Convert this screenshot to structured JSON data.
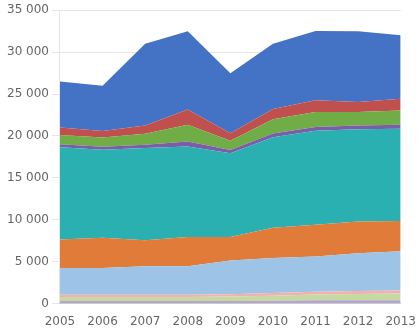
{
  "chart_data": {
    "type": "area",
    "stacked": true,
    "grid": true,
    "x": [
      2005,
      2006,
      2007,
      2008,
      2009,
      2010,
      2011,
      2012,
      2013
    ],
    "xlim": [
      2005,
      2013
    ],
    "xticks": [
      2005,
      2006,
      2007,
      2008,
      2009,
      2010,
      2011,
      2012,
      2013
    ],
    "ylim": [
      0,
      35000
    ],
    "yticks": [
      0,
      {
        "value": 5000,
        "label": "5 000"
      },
      {
        "value": 10000,
        "label": "10 000"
      },
      {
        "value": 15000,
        "label": "15 000"
      },
      {
        "value": 20000,
        "label": "20 000"
      },
      {
        "value": 25000,
        "label": "25 000"
      },
      {
        "value": 30000,
        "label": "30 000"
      },
      {
        "value": 35000,
        "label": "35 000"
      }
    ],
    "series": [
      {
        "color": "#b3a8cc",
        "values": [
          300,
          300,
          300,
          300,
          300,
          350,
          400,
          400,
          400
        ]
      },
      {
        "color": "#c6d9a0",
        "values": [
          500,
          500,
          500,
          500,
          550,
          600,
          700,
          750,
          800
        ]
      },
      {
        "color": "#f2b0b0",
        "values": [
          250,
          250,
          250,
          250,
          280,
          300,
          320,
          350,
          350
        ]
      },
      {
        "color": "#9dc3e6",
        "values": [
          3200,
          3200,
          3400,
          3400,
          4000,
          4200,
          4200,
          4500,
          4700
        ]
      },
      {
        "color": "#e07b39",
        "values": [
          3400,
          3600,
          3100,
          3500,
          2800,
          3600,
          3800,
          3800,
          3600
        ]
      },
      {
        "color": "#2ab0b0",
        "values": [
          11000,
          10500,
          11000,
          10800,
          10000,
          10800,
          11200,
          11000,
          11000
        ]
      },
      {
        "color": "#7b5ea7",
        "values": [
          350,
          350,
          400,
          600,
          400,
          450,
          450,
          450,
          500
        ]
      },
      {
        "color": "#70ad47",
        "values": [
          1100,
          1100,
          1300,
          2000,
          1100,
          1700,
          1800,
          1600,
          1700
        ]
      },
      {
        "color": "#c0504d",
        "values": [
          900,
          800,
          1000,
          1800,
          900,
          1200,
          1400,
          1200,
          1400
        ]
      },
      {
        "color": "#4472c4",
        "values": [
          5500,
          5400,
          9750,
          9350,
          7150,
          7800,
          8250,
          8450,
          7550
        ]
      }
    ]
  }
}
